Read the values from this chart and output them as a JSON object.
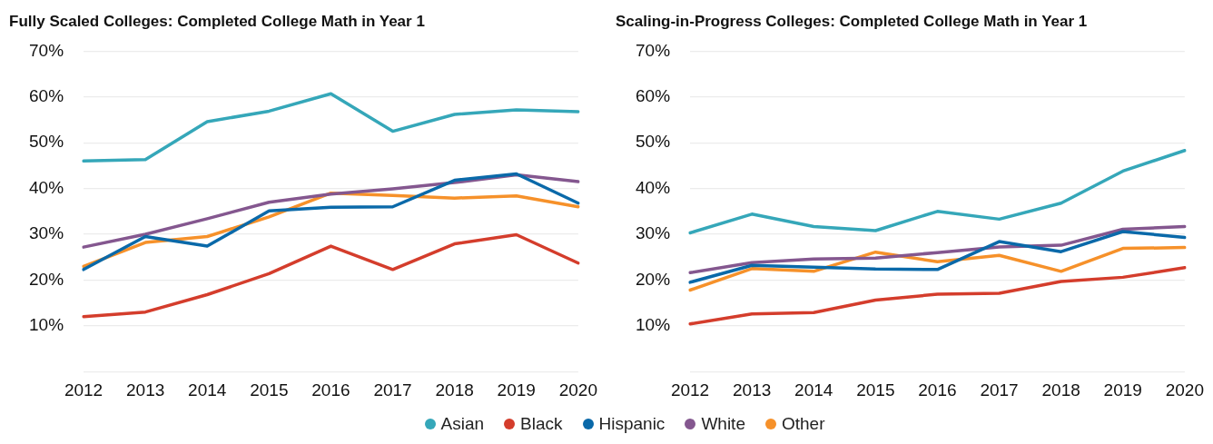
{
  "chart_data": [
    {
      "type": "line",
      "title": "Fully Scaled Colleges: Completed College Math in Year 1",
      "categories": [
        "2012",
        "2013",
        "2014",
        "2015",
        "2016",
        "2017",
        "2018",
        "2019",
        "2020"
      ],
      "series": [
        {
          "name": "Asian",
          "color": "#35a7b9",
          "values": [
            46,
            46.3,
            54.6,
            56.9,
            60.7,
            52.5,
            56.2,
            57.2,
            56.8
          ]
        },
        {
          "name": "Black",
          "color": "#d43d2c",
          "values": [
            12,
            13,
            16.8,
            21.4,
            27.4,
            22.3,
            27.9,
            29.9,
            23.7
          ]
        },
        {
          "name": "Hispanic",
          "color": "#0a69a9",
          "values": [
            22.3,
            29.5,
            27.4,
            35.1,
            35.9,
            36,
            41.8,
            43.2,
            36.8
          ]
        },
        {
          "name": "White",
          "color": "#84578f",
          "values": [
            27.2,
            30,
            33.4,
            37,
            38.8,
            39.9,
            41.3,
            43,
            41.5
          ]
        },
        {
          "name": "Other",
          "color": "#f6912a",
          "values": [
            23,
            28.2,
            29.5,
            33.8,
            39,
            38.5,
            37.9,
            38.4,
            36
          ]
        }
      ],
      "ylim": [
        0,
        70
      ],
      "yticks": [
        {
          "value": 0,
          "label": null
        },
        {
          "value": 10,
          "label": "10%"
        },
        {
          "value": 20,
          "label": "20%"
        },
        {
          "value": 30,
          "label": "30%"
        },
        {
          "value": 40,
          "label": "40%"
        },
        {
          "value": 50,
          "label": "50%"
        },
        {
          "value": 60,
          "label": "60%"
        },
        {
          "value": 70,
          "label": "70%"
        }
      ],
      "grid": "y",
      "legend": "bottom",
      "marker": "none",
      "line_style": "solid"
    },
    {
      "type": "line",
      "title": "Scaling-in-Progress Colleges: Completed College Math in Year 1",
      "categories": [
        "2012",
        "2013",
        "2014",
        "2015",
        "2016",
        "2017",
        "2018",
        "2019",
        "2020"
      ],
      "series": [
        {
          "color": "#35a7b9",
          "values": [
            30.3,
            34.4,
            31.7,
            30.8,
            35,
            33.3,
            36.8,
            43.8,
            48.3
          ]
        },
        {
          "color": "#d43d2c",
          "values": [
            10.4,
            12.6,
            12.9,
            15.6,
            16.9,
            17.1,
            19.7,
            20.6,
            22.7
          ]
        },
        {
          "color": "#0a69a9",
          "values": [
            19.5,
            23.2,
            22.8,
            22.4,
            22.3,
            28.4,
            26.2,
            30.6,
            29.3
          ]
        },
        {
          "color": "#84578f",
          "values": [
            21.6,
            23.8,
            24.6,
            24.8,
            26,
            27.2,
            27.6,
            31.1,
            31.7
          ]
        },
        {
          "color": "#f6912a",
          "values": [
            17.8,
            22.5,
            21.9,
            26.1,
            24,
            25.4,
            21.9,
            26.9,
            27.1
          ]
        }
      ],
      "ylim": [
        0,
        70
      ],
      "yticks": [
        {
          "value": 0,
          "label": null
        },
        {
          "value": 10,
          "label": "10%"
        },
        {
          "value": 20,
          "label": "20%"
        },
        {
          "value": 30,
          "label": "30%"
        },
        {
          "value": 40,
          "label": "40%"
        },
        {
          "value": 50,
          "label": "50%"
        },
        {
          "value": 60,
          "label": "60%"
        },
        {
          "value": 70,
          "label": "70%"
        }
      ],
      "grid": "y",
      "marker": "none",
      "line_style": "solid"
    }
  ]
}
